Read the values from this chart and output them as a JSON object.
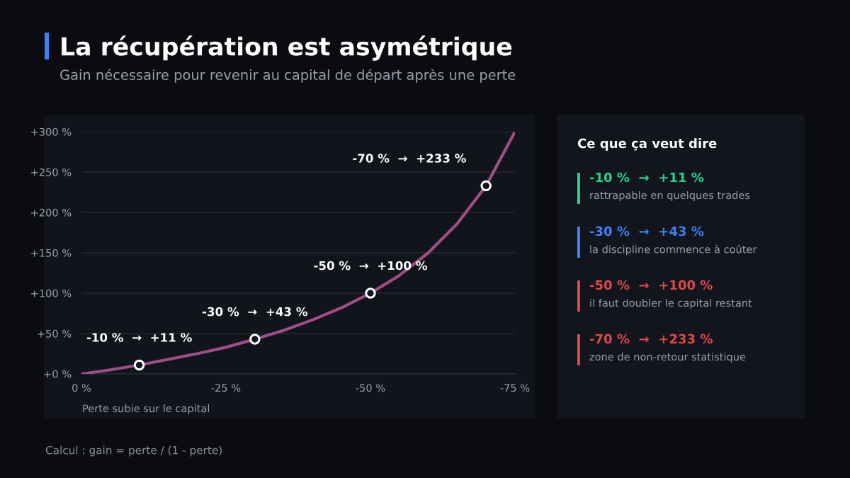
{
  "chart_data": [
    {
      "type": "line",
      "title": "La récupération est asymétrique",
      "subtitle": "Gain nécessaire pour revenir au capital de départ après une perte",
      "xlabel": "Perte subie sur le capital",
      "series": [
        {
          "type": "line",
          "marker": "none",
          "color": "#a04f86",
          "x": [
            0,
            -5,
            -10,
            -15,
            -20,
            -25,
            -30,
            -35,
            -40,
            -45,
            -50,
            -55,
            -60,
            -65,
            -70,
            -75
          ],
          "values": [
            0,
            5,
            11,
            18,
            25,
            33,
            43,
            54,
            67,
            82,
            100,
            122,
            150,
            186,
            233,
            300
          ]
        },
        {
          "type": "scatter",
          "color": "#ffffff",
          "x": [
            -10,
            -30,
            -50,
            -70
          ],
          "values": [
            11,
            43,
            100,
            233
          ]
        }
      ],
      "xlim": [
        0,
        -75
      ],
      "xticks": [
        {
          "value": 0,
          "label": "0 %"
        },
        {
          "value": -25,
          "label": "-25 %"
        },
        {
          "value": -50,
          "label": "-50 %"
        },
        {
          "value": -75,
          "label": "-75 %"
        }
      ],
      "ylim": [
        0,
        300
      ],
      "yticks": [
        {
          "value": 0,
          "label": "+0 %"
        },
        {
          "value": 50,
          "label": "+50 %"
        },
        {
          "value": 100,
          "label": "+100 %"
        },
        {
          "value": 150,
          "label": "+150 %"
        },
        {
          "value": 200,
          "label": "+200 %"
        },
        {
          "value": 250,
          "label": "+250 %"
        },
        {
          "value": 300,
          "label": "+300 %"
        }
      ],
      "grid": "y",
      "marker": "circle",
      "line_style": "solid",
      "legend": false,
      "annotations": [
        {
          "text": "-10 %  →  +11 %",
          "x": -10,
          "y": 11
        },
        {
          "text": "-30 %  →  +43 %",
          "x": -30,
          "y": 43
        },
        {
          "text": "-50 %  →  +100 %",
          "x": -50,
          "y": 100
        },
        {
          "text": "-70 %  →  +233 %",
          "x": -70,
          "y": 233
        },
        "Calcul : gain = perte / (1 - perte)"
      ]
    },
    {
      "type": "other",
      "title": "Ce que ça veut dire",
      "annotations": [
        "-10 %  →  +11 %",
        "rattrapable en quelques trades",
        "-30 %  →  +43 %",
        "la discipline commence à coûter",
        "-50 %  →  +100 %",
        "il faut doubler le capital restant",
        "-70 %  →  +233 %",
        "zone de non-retour statistique"
      ],
      "colors": [
        "#22d68c",
        "#3b82f6",
        "#e04848",
        "#e04848"
      ]
    }
  ]
}
